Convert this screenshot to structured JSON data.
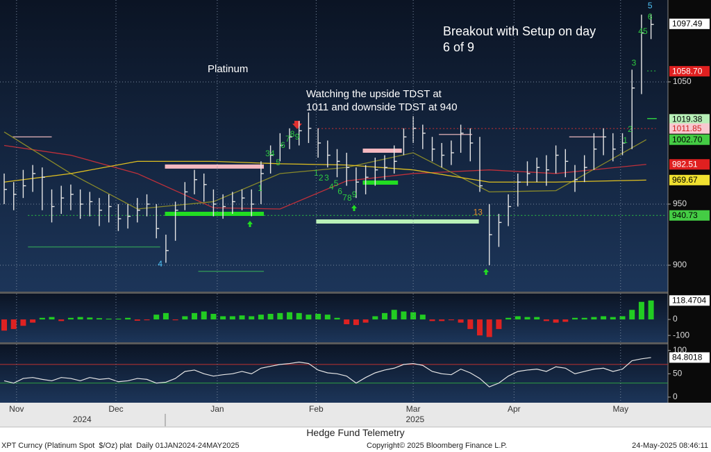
{
  "chart_data": [
    {
      "type": "hlc",
      "title": "Platinum",
      "annotations": [
        "Watching the upside TDST at 1011 and downside TDST at 940",
        "Breakout with Setup on day 6 of 9"
      ],
      "xlim": [
        -0.44,
        69.78
      ],
      "ylim": [
        878.4,
        1117
      ],
      "yticks": [
        900,
        950,
        1050
      ],
      "grid": true,
      "bar_color": "#e6e6e6",
      "highs": [
        975,
        968,
        978,
        982,
        980,
        962,
        965,
        966,
        962,
        960,
        955,
        958,
        950,
        950,
        955,
        958,
        950,
        925,
        952,
        968,
        978,
        975,
        962,
        958,
        960,
        962,
        962,
        985,
        998,
        1008,
        1012,
        1018,
        1025,
        1012,
        1002,
        995,
        992,
        980,
        982,
        988,
        990,
        998,
        1012,
        1022,
        1015,
        1005,
        1000,
        1002,
        1015,
        1012,
        1005,
        950,
        942,
        958,
        975,
        985,
        988,
        990,
        998,
        995,
        982,
        990,
        1008,
        1012,
        1008,
        1008,
        1060,
        1105,
        1105
      ],
      "lows": [
        950,
        945,
        955,
        960,
        945,
        935,
        942,
        945,
        938,
        940,
        932,
        935,
        928,
        930,
        935,
        940,
        922,
        902,
        920,
        945,
        958,
        952,
        940,
        938,
        942,
        945,
        940,
        950,
        975,
        985,
        995,
        998,
        1000,
        988,
        980,
        972,
        965,
        955,
        958,
        965,
        970,
        975,
        990,
        1000,
        995,
        985,
        980,
        982,
        992,
        985,
        960,
        900,
        915,
        932,
        948,
        965,
        968,
        965,
        975,
        972,
        960,
        968,
        978,
        990,
        985,
        990,
        995,
        1040,
        1085
      ],
      "closes": [
        962,
        958,
        965,
        975,
        972,
        948,
        955,
        958,
        950,
        952,
        945,
        948,
        938,
        940,
        945,
        950,
        930,
        912,
        945,
        960,
        970,
        966,
        950,
        948,
        952,
        955,
        950,
        975,
        990,
        998,
        1005,
        1010,
        1012,
        1000,
        990,
        985,
        980,
        968,
        972,
        978,
        980,
        985,
        1005,
        1012,
        1008,
        995,
        990,
        992,
        1008,
        1000,
        965,
        925,
        935,
        948,
        968,
        975,
        980,
        978,
        990,
        985,
        970,
        980,
        995,
        1005,
        995,
        1000,
        1045,
        1090,
        1097
      ],
      "moving_averages": [
        {
          "color": "#c0303a",
          "x": [
            0,
            7,
            14,
            22,
            29,
            36,
            43,
            51,
            58,
            67.5
          ],
          "values": [
            998,
            990,
            975,
            947,
            946,
            969,
            975,
            978,
            975,
            982.51
          ]
        },
        {
          "color": "#8a8a2a",
          "x": [
            0,
            7,
            14,
            22,
            29,
            36,
            43,
            51,
            58,
            67.5
          ],
          "values": [
            1009,
            975,
            946,
            952,
            975,
            980,
            992,
            960,
            961,
            1002.7
          ]
        },
        {
          "color": "#e0c020",
          "x": [
            0,
            7,
            14,
            22,
            29,
            36,
            43,
            51,
            58,
            67.5
          ],
          "values": [
            968,
            975,
            985,
            985,
            983,
            982,
            978,
            968,
            968,
            969.67
          ]
        }
      ],
      "levels": [
        {
          "value": 1011.85,
          "from": 33,
          "to": 68.5,
          "color": "#d03030",
          "style": "dotted"
        },
        {
          "value": 940.73,
          "from": 2.5,
          "to": 69.5,
          "color": "#2ecc40",
          "style": "dotted"
        },
        {
          "value": 980.7,
          "from": 16.9,
          "to": 27.3,
          "color": "#f4b8c0",
          "style": "thick"
        },
        {
          "value": 942,
          "from": 16.9,
          "to": 27.3,
          "color": "#22dd22",
          "style": "thick"
        },
        {
          "value": 935.8,
          "from": 32.8,
          "to": 49.9,
          "color": "#b8f0b8",
          "style": "thick"
        },
        {
          "value": 993.7,
          "from": 37.7,
          "to": 41.8,
          "color": "#f4b8c0",
          "style": "thick"
        },
        {
          "value": 967.6,
          "from": 37.7,
          "to": 41.4,
          "color": "#22dd22",
          "style": "thick"
        },
        {
          "value": 915,
          "from": 2.5,
          "to": 16.4,
          "color": "#2e8b57",
          "style": "thin"
        },
        {
          "value": 895,
          "from": 20.4,
          "to": 27.3,
          "color": "#2e8b57",
          "style": "thin"
        },
        {
          "value": 1005,
          "from": 0.9,
          "to": 5.0,
          "color": "#c8a0a8",
          "style": "thin"
        },
        {
          "value": 1007,
          "from": 45.7,
          "to": 49.2,
          "color": "#c8a0a8",
          "style": "thin"
        },
        {
          "value": 1005,
          "from": 59.4,
          "to": 63.1,
          "color": "#c8a0a8",
          "style": "thin"
        },
        {
          "value": 1059,
          "from": 67.6,
          "to": 68.6,
          "color": "#2ecc40",
          "style": "dotted"
        },
        {
          "value": 1020,
          "from": 67.6,
          "to": 68.6,
          "color": "#2ecc40",
          "style": "thin"
        }
      ],
      "td_counts": [
        {
          "bar": 16.4,
          "price": 900.6,
          "label": "4",
          "color": "#4fc3f7"
        },
        {
          "bar": 26.9,
          "price": 962.5,
          "label": "1",
          "color": "#2ecc40"
        },
        {
          "bar": 27.7,
          "price": 991,
          "label": "3",
          "color": "#2ecc40"
        },
        {
          "bar": 28.2,
          "price": 991,
          "label": "4",
          "color": "#2ecc40"
        },
        {
          "bar": 28.8,
          "price": 983.5,
          "label": "5",
          "color": "#2ecc40"
        },
        {
          "bar": 29.3,
          "price": 997.7,
          "label": "6",
          "color": "#2ecc40"
        },
        {
          "bar": 29.8,
          "price": 1003,
          "label": "7",
          "color": "#2ecc40"
        },
        {
          "bar": 30.3,
          "price": 1007,
          "label": "8",
          "color": "#2ecc40"
        },
        {
          "bar": 30.8,
          "price": 1004.5,
          "label": "9",
          "color": "#2ecc40",
          "emphasis": true
        },
        {
          "bar": 32.8,
          "price": 975,
          "label": "1",
          "color": "#2ecc40"
        },
        {
          "bar": 33.3,
          "price": 971,
          "label": "2",
          "color": "#2ecc40"
        },
        {
          "bar": 33.9,
          "price": 971,
          "label": "3",
          "color": "#2ecc40"
        },
        {
          "bar": 34.4,
          "price": 963.6,
          "label": "4",
          "color": "#2ecc40"
        },
        {
          "bar": 34.9,
          "price": 966.5,
          "label": "5",
          "color": "#2ecc40"
        },
        {
          "bar": 35.3,
          "price": 960,
          "label": "6",
          "color": "#2ecc40"
        },
        {
          "bar": 35.8,
          "price": 955,
          "label": "7",
          "color": "#2ecc40"
        },
        {
          "bar": 36.3,
          "price": 954.5,
          "label": "8",
          "color": "#2ecc40"
        },
        {
          "bar": 36.8,
          "price": 957.4,
          "label": "9",
          "color": "#2ecc40",
          "emphasis": true
        },
        {
          "bar": 49.8,
          "price": 943,
          "label": "13",
          "color": "#e8912d",
          "emphasis": true
        },
        {
          "bar": 65.3,
          "price": 1001.7,
          "label": "1",
          "color": "#2ecc40"
        },
        {
          "bar": 65.8,
          "price": 1011,
          "label": "2",
          "color": "#2ecc40"
        },
        {
          "bar": 66.2,
          "price": 1065,
          "label": "3",
          "color": "#2ecc40"
        },
        {
          "bar": 66.9,
          "price": 1091,
          "label": "4",
          "color": "#2ecc40"
        },
        {
          "bar": 67.4,
          "price": 1091,
          "label": "5",
          "color": "#2ecc40"
        },
        {
          "bar": 67.9,
          "price": 1103,
          "label": "6",
          "color": "#2ecc40"
        },
        {
          "bar": 67.9,
          "price": 1112,
          "label": "5",
          "color": "#4fc3f7"
        }
      ],
      "price_tags": [
        {
          "value": 1097.49,
          "bg": "#ffffff",
          "fg": "#000000"
        },
        {
          "value": 1058.7,
          "label": "1058.70",
          "bg": "#e02020",
          "fg": "#ffffff"
        },
        {
          "value": 1019.38,
          "bg": "#b8f0b8",
          "fg": "#000000"
        },
        {
          "value": 1011.85,
          "bg": "#f8c8d0",
          "fg": "#d02020"
        },
        {
          "value": 1002.7,
          "label": "1002.70",
          "bg": "#44cc44",
          "fg": "#000000"
        },
        {
          "value": 982.51,
          "bg": "#e02020",
          "fg": "#ffffff"
        },
        {
          "value": 969.67,
          "bg": "#f0e030",
          "fg": "#000000"
        },
        {
          "value": 940.73,
          "bg": "#44cc44",
          "fg": "#000000"
        }
      ]
    },
    {
      "type": "bar",
      "xlim": [
        -0.44,
        69.78
      ],
      "ylim": [
        -143,
        161
      ],
      "yticks": [
        -100,
        0
      ],
      "positive_color": "#22cc22",
      "negative_color": "#dd2222",
      "tag_color": "#ffffff",
      "values": [
        -70,
        -60,
        -40,
        -20,
        10,
        15,
        -10,
        10,
        15,
        12,
        8,
        5,
        5,
        10,
        -8,
        -5,
        30,
        40,
        -5,
        20,
        40,
        50,
        35,
        20,
        20,
        25,
        20,
        30,
        35,
        40,
        45,
        40,
        30,
        35,
        30,
        10,
        -30,
        -35,
        -20,
        20,
        40,
        60,
        50,
        45,
        30,
        -10,
        -10,
        -5,
        -20,
        -60,
        -100,
        -110,
        -60,
        10,
        20,
        15,
        15,
        -10,
        -20,
        -15,
        10,
        10,
        15,
        20,
        15,
        20,
        60,
        110,
        118.4704
      ]
    },
    {
      "type": "line",
      "xlim": [
        -0.44,
        69.78
      ],
      "ylim": [
        -12,
        113
      ],
      "yticks": [
        0,
        50,
        100
      ],
      "color": "#e6e6e6",
      "tag_color": "#ffffff",
      "bands": [
        {
          "value": 70,
          "color": "#c03030"
        },
        {
          "value": 30,
          "color": "#2ea043"
        }
      ],
      "values": [
        35,
        30,
        40,
        42,
        38,
        35,
        42,
        40,
        35,
        42,
        38,
        40,
        33,
        35,
        40,
        38,
        30,
        32,
        40,
        55,
        58,
        50,
        45,
        48,
        50,
        55,
        50,
        62,
        66,
        70,
        72,
        75,
        72,
        58,
        52,
        50,
        45,
        30,
        42,
        52,
        58,
        62,
        70,
        72,
        68,
        55,
        50,
        48,
        60,
        52,
        40,
        22,
        30,
        45,
        55,
        58,
        60,
        55,
        65,
        62,
        50,
        55,
        60,
        62,
        55,
        60,
        78,
        82,
        84.8018
      ],
      "xticks": [
        {
          "value": 1.3,
          "label": "Nov"
        },
        {
          "value": 11.75,
          "label": "Dec"
        },
        {
          "value": 22.4,
          "label": "Jan"
        },
        {
          "value": 32.8,
          "label": "Feb"
        },
        {
          "value": 43,
          "label": "Mar"
        },
        {
          "value": 53.6,
          "label": "Apr"
        },
        {
          "value": 64.8,
          "label": "May"
        }
      ],
      "year_ticks": [
        {
          "value": 8.2,
          "label": "2024"
        },
        {
          "value": 43.2,
          "label": "2025"
        }
      ]
    }
  ],
  "footer": {
    "credit": "Hedge Fund Telemetry",
    "security": "XPT Curncy (Platinum Spot  $/Oz) plat  Daily 01JAN2024-24MAY2025",
    "copyright": "Copyright© 2025 Bloomberg Finance L.P.",
    "timestamp": "24-May-2025 08:46:11"
  }
}
